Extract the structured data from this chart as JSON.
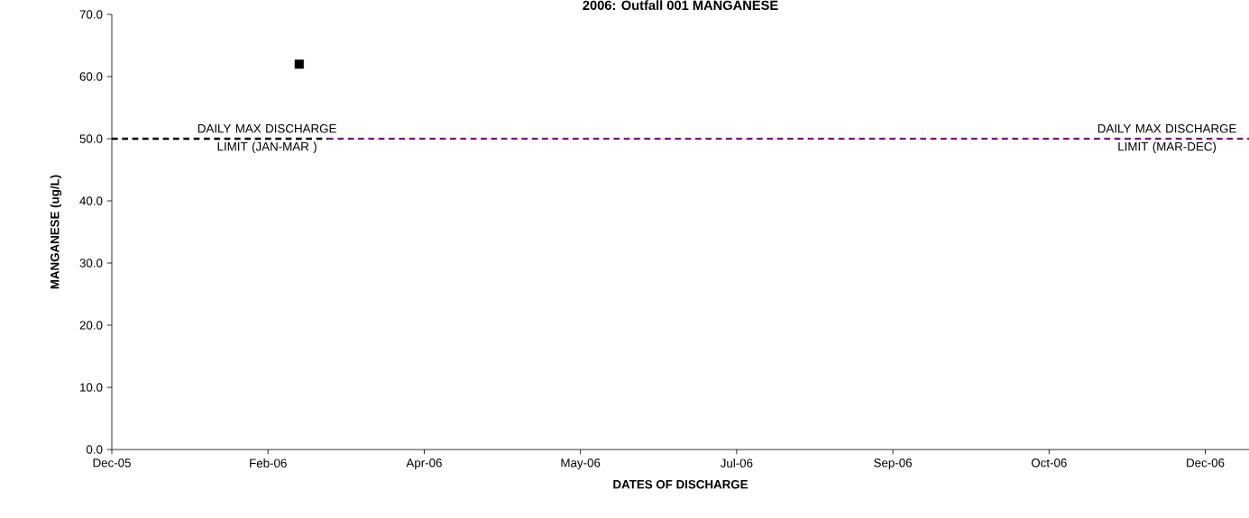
{
  "chart_data": {
    "type": "scatter",
    "title": "2006: Outfall 001 MANGANESE",
    "xlabel": "DATES OF DISCHARGE",
    "ylabel": "MANGANESE (ug/L)",
    "xlim": [
      "2005-12-31",
      "2006-12-30"
    ],
    "ylim": [
      0,
      70
    ],
    "xticks": [
      {
        "value": "2005-12-31",
        "label": "Dec-05"
      },
      {
        "value": "2006-02-19",
        "label": "Feb-06"
      },
      {
        "value": "2006-04-10",
        "label": "Apr-06"
      },
      {
        "value": "2006-05-30",
        "label": "May-06"
      },
      {
        "value": "2006-07-19",
        "label": "Jul-06"
      },
      {
        "value": "2006-09-07",
        "label": "Sep-06"
      },
      {
        "value": "2006-10-27",
        "label": "Oct-06"
      },
      {
        "value": "2006-12-16",
        "label": "Dec-06"
      }
    ],
    "yticks": [
      {
        "value": 0,
        "label": "0.0"
      },
      {
        "value": 10,
        "label": "10.0"
      },
      {
        "value": 20,
        "label": "20.0"
      },
      {
        "value": 30,
        "label": "30.0"
      },
      {
        "value": 40,
        "label": "40.0"
      },
      {
        "value": 50,
        "label": "50.0"
      },
      {
        "value": 60,
        "label": "60.0"
      },
      {
        "value": 70,
        "label": "70.0"
      }
    ],
    "series": [
      {
        "color": "#000000",
        "marker": "square",
        "x": [
          "2006-03-01"
        ],
        "values": [
          62
        ]
      },
      {
        "type": "line",
        "name": "DAILY MAX DISCHARGE LIMIT (JAN-MAR )",
        "color": "#000000",
        "line_style": "dashed",
        "marker": "none",
        "x": [
          "2005-12-31",
          "2006-03-10"
        ],
        "values": [
          50,
          50
        ]
      },
      {
        "type": "line",
        "name": "DAILY MAX DISCHARGE LIMIT (MAR-DEC)",
        "color": "#800080",
        "line_style": "dashed",
        "marker": "none",
        "x": [
          "2006-03-10",
          "2006-12-30"
        ],
        "values": [
          50,
          50
        ]
      }
    ]
  }
}
